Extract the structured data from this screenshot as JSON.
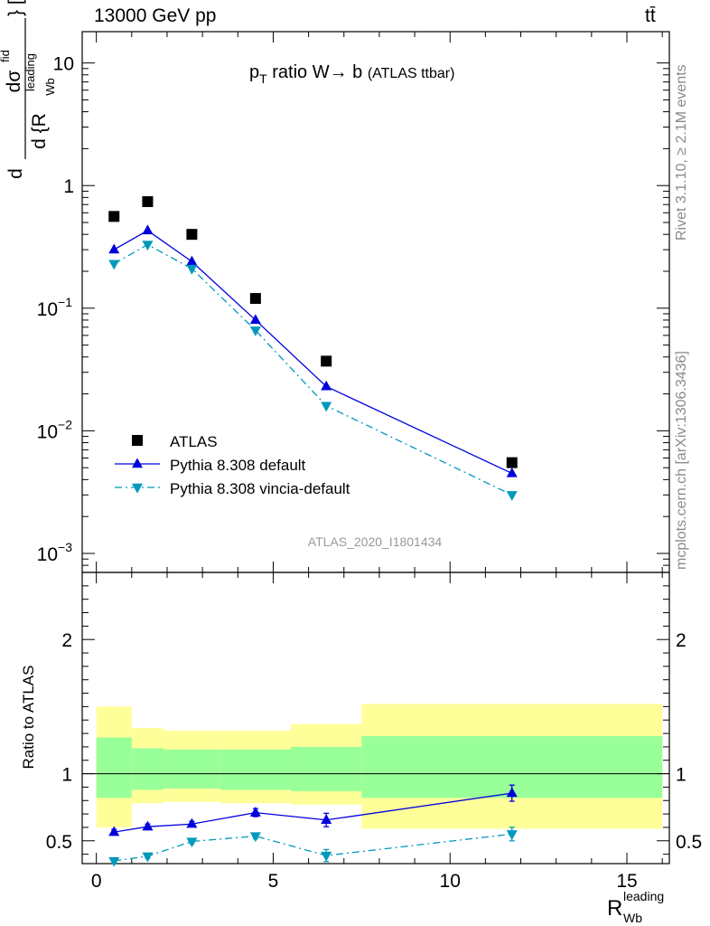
{
  "header": {
    "energy_label": "13000 GeV pp",
    "process_label": "tt̄"
  },
  "side_labels": {
    "rivet": "Rivet 3.1.10, ≥ 2.1M events",
    "mcplots": "mcplots.cern.ch [arXiv:1306.3436]"
  },
  "analysis_id": "ATLAS_2020_I1801434",
  "chart_data": [
    {
      "panel": "main",
      "type": "scatter",
      "title_parts": {
        "p": "p",
        "sub": "T",
        "rest": " ratio W→ b",
        "note": "(ATLAS ttbar)"
      },
      "ylabel_parts": {
        "d": "d",
        "num": "dσ",
        "num_sup": "fid",
        "den_d": "d {R",
        "den_sup": "leading",
        "den_sub": "Wb",
        "close": "} [pb]"
      },
      "yscale": "log",
      "ylim": [
        0.0007,
        18
      ],
      "xlim": [
        -0.4,
        16.2
      ],
      "yticks": [
        {
          "value": 10,
          "base": "10",
          "exp": ""
        },
        {
          "value": 1,
          "base": "1",
          "exp": ""
        },
        {
          "value": 0.1,
          "base": "10",
          "exp": "−1"
        },
        {
          "value": 0.01,
          "base": "10",
          "exp": "−2"
        },
        {
          "value": 0.001,
          "base": "10",
          "exp": "−3"
        }
      ],
      "series": [
        {
          "name": "ATLAS",
          "color": "#000000",
          "marker": "square",
          "line": "none",
          "x": [
            0.5,
            1.45,
            2.7,
            4.5,
            6.5,
            11.75
          ],
          "y": [
            0.56,
            0.74,
            0.4,
            0.12,
            0.037,
            0.0055
          ]
        },
        {
          "name": "Pythia 8.308 default",
          "color": "#0000dd",
          "marker": "triangle-up",
          "line": "solid",
          "x": [
            0.5,
            1.45,
            2.7,
            4.5,
            6.5,
            11.75
          ],
          "y": [
            0.3,
            0.43,
            0.24,
            0.08,
            0.023,
            0.0045
          ]
        },
        {
          "name": "Pythia 8.308 vincia-default",
          "color": "#0099bb",
          "marker": "triangle-down",
          "line": "dashdot",
          "x": [
            0.5,
            1.45,
            2.7,
            4.5,
            6.5,
            11.75
          ],
          "y": [
            0.23,
            0.33,
            0.21,
            0.066,
            0.016,
            0.003
          ]
        }
      ],
      "legend_placement": "lower-left"
    },
    {
      "panel": "ratio",
      "type": "line",
      "ylabel": "Ratio to ATLAS",
      "xlabel_parts": {
        "R": "R",
        "sup": "leading",
        "sub": "Wb"
      },
      "ylim": [
        0.33,
        2.5
      ],
      "xlim": [
        -0.4,
        16.2
      ],
      "yticks": [
        0.5,
        1,
        2
      ],
      "xticks": [
        0,
        5,
        10,
        15
      ],
      "uncertainty_bands": {
        "bins": [
          {
            "x_lo": 0,
            "x_hi": 1,
            "inner_lo": 0.82,
            "inner_hi": 1.27,
            "outer_lo": 0.6,
            "outer_hi": 1.5
          },
          {
            "x_lo": 1,
            "x_hi": 1.9,
            "inner_lo": 0.88,
            "inner_hi": 1.19,
            "outer_lo": 0.78,
            "outer_hi": 1.34
          },
          {
            "x_lo": 1.9,
            "x_hi": 3.5,
            "inner_lo": 0.89,
            "inner_hi": 1.18,
            "outer_lo": 0.79,
            "outer_hi": 1.32
          },
          {
            "x_lo": 3.5,
            "x_hi": 5.5,
            "inner_lo": 0.88,
            "inner_hi": 1.18,
            "outer_lo": 0.78,
            "outer_hi": 1.32
          },
          {
            "x_lo": 5.5,
            "x_hi": 7.5,
            "inner_lo": 0.87,
            "inner_hi": 1.2,
            "outer_lo": 0.77,
            "outer_hi": 1.37
          },
          {
            "x_lo": 7.5,
            "x_hi": 16,
            "inner_lo": 0.82,
            "inner_hi": 1.28,
            "outer_lo": 0.59,
            "outer_hi": 1.52
          }
        ],
        "inner_color": "#99ff99",
        "outer_color": "#ffff99"
      },
      "reference_line": 1,
      "series": [
        {
          "name": "Pythia 8.308 default",
          "color": "#0000dd",
          "marker": "triangle-up",
          "line": "solid",
          "x": [
            0.5,
            1.45,
            2.7,
            4.5,
            6.5,
            11.75
          ],
          "y": [
            0.565,
            0.605,
            0.625,
            0.71,
            0.655,
            0.855
          ],
          "err": [
            0.02,
            0.02,
            0.02,
            0.03,
            0.05,
            0.06
          ]
        },
        {
          "name": "Pythia 8.308 vincia-default",
          "color": "#0099bb",
          "marker": "triangle-down",
          "line": "dashdot",
          "x": [
            0.5,
            1.45,
            2.7,
            4.5,
            6.5,
            11.75
          ],
          "y": [
            0.35,
            0.385,
            0.495,
            0.535,
            0.39,
            0.55
          ],
          "err": [
            0.015,
            0.015,
            0.015,
            0.02,
            0.045,
            0.05
          ]
        }
      ]
    }
  ]
}
